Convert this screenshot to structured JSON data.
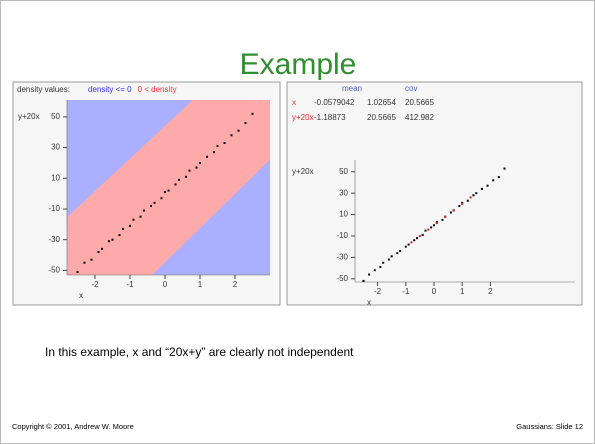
{
  "slide": {
    "title": "Example",
    "text": "In this example, x and “20x+y” are clearly not independent",
    "footer_left": "Copyright © 2001, Andrew W. Moore",
    "footer_right": "Gaussians: Slide 12"
  },
  "chart_data": [
    {
      "type": "scatter",
      "legend_title": "density values:",
      "legend": [
        "density <= 0",
        "0 < density"
      ],
      "legend_colors": [
        "#3333ff",
        "#ff3333"
      ],
      "background_colors": [
        "#aab0ff",
        "#ffaaaa"
      ],
      "xlabel": "x",
      "ylabel": "y+20x",
      "xlim": [
        -2.8,
        3
      ],
      "ylim": [
        -53,
        61
      ],
      "xticks": [
        -2,
        -1,
        0,
        1,
        2
      ],
      "yticks": [
        50,
        30,
        10,
        -10,
        -30,
        -50
      ],
      "series": [
        {
          "color": "#000000",
          "x": [
            -2.5,
            -2.3,
            -2.1,
            -1.9,
            -1.8,
            -1.6,
            -1.5,
            -1.3,
            -1.2,
            -1.0,
            -0.9,
            -0.7,
            -0.6,
            -0.4,
            -0.3,
            -0.1,
            0,
            0.1,
            0.3,
            0.4,
            0.6,
            0.7,
            0.9,
            1.0,
            1.2,
            1.4,
            1.5,
            1.7,
            1.9,
            2.1,
            2.3,
            2.5
          ],
          "values": [
            -51,
            -45,
            -43,
            -38,
            -36,
            -31,
            -30,
            -27,
            -23,
            -21,
            -17,
            -15,
            -11,
            -8,
            -6,
            -3,
            1,
            2,
            6,
            9,
            11,
            15,
            17,
            20,
            24,
            27,
            31,
            33,
            38,
            41,
            46,
            52
          ]
        }
      ]
    },
    {
      "type": "scatter",
      "stats": {
        "columns": [
          "mean",
          "cov"
        ],
        "rows": [
          {
            "label": "x",
            "values": [
              -0.0579042,
              1.02654,
              20.5665
            ]
          },
          {
            "label": "y+20x",
            "values": [
              -1.18873,
              20.5665,
              412.982
            ]
          }
        ]
      },
      "xlabel": "x",
      "ylabel": "y+20x",
      "xlim": [
        -2.8,
        5
      ],
      "ylim": [
        -53,
        61
      ],
      "xticks": [
        -2,
        -1,
        0,
        1,
        2
      ],
      "yticks": [
        50,
        30,
        10,
        -10,
        -30,
        -50
      ],
      "series": [
        {
          "color": "#000000",
          "x": [
            -2.5,
            -2.3,
            -2.1,
            -1.9,
            -1.8,
            -1.6,
            -1.5,
            -1.3,
            -1.2,
            -1.0,
            -0.9,
            -0.7,
            -0.6,
            -0.4,
            -0.3,
            -0.1,
            0,
            0.1,
            0.3,
            0.4,
            0.6,
            0.7,
            0.9,
            1.0,
            1.2,
            1.4,
            1.5,
            1.7,
            1.9,
            2.1,
            2.3,
            2.5
          ],
          "values": [
            -52,
            -46,
            -42,
            -39,
            -35,
            -32,
            -29,
            -26,
            -24,
            -20,
            -18,
            -14,
            -12,
            -9,
            -5,
            -2,
            0,
            3,
            5,
            8,
            12,
            14,
            18,
            21,
            23,
            28,
            30,
            34,
            37,
            42,
            45,
            53
          ]
        },
        {
          "color": "#cc2222",
          "x": [
            -0.8,
            -0.5,
            -0.2,
            0.1,
            0.4,
            0.7,
            1.0,
            1.3
          ],
          "values": [
            -16,
            -10,
            -4,
            2,
            8,
            14,
            20,
            26
          ]
        }
      ]
    }
  ]
}
